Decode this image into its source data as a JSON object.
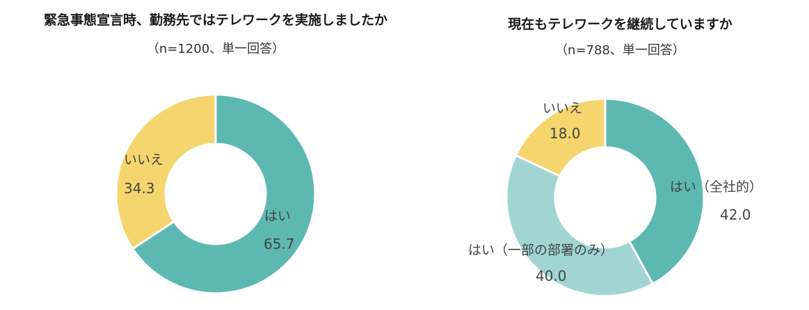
{
  "chart_data": [
    {
      "type": "pie",
      "title": "緊急事態宣言時、勤務先ではテレワークを実施しましたか",
      "subtitle": "（n=1200、単一回答）",
      "categories": [
        "はい",
        "いいえ"
      ],
      "values": [
        65.7,
        34.3
      ],
      "value_labels": [
        "65.7",
        "34.3"
      ],
      "colors": [
        "#5db8b2",
        "#f5d56e"
      ],
      "donut": true
    },
    {
      "type": "pie",
      "title": "現在もテレワークを継続していますか",
      "subtitle": "（n=788、単一回答）",
      "categories": [
        "はい（全社的）",
        "はい（一部の部署のみ）",
        "いいえ"
      ],
      "values": [
        42.0,
        40.0,
        18.0
      ],
      "value_labels": [
        "42.0",
        "40.0",
        "18.0"
      ],
      "colors": [
        "#5db8b2",
        "#a0d5d2",
        "#f5d56e"
      ],
      "donut": true
    }
  ]
}
